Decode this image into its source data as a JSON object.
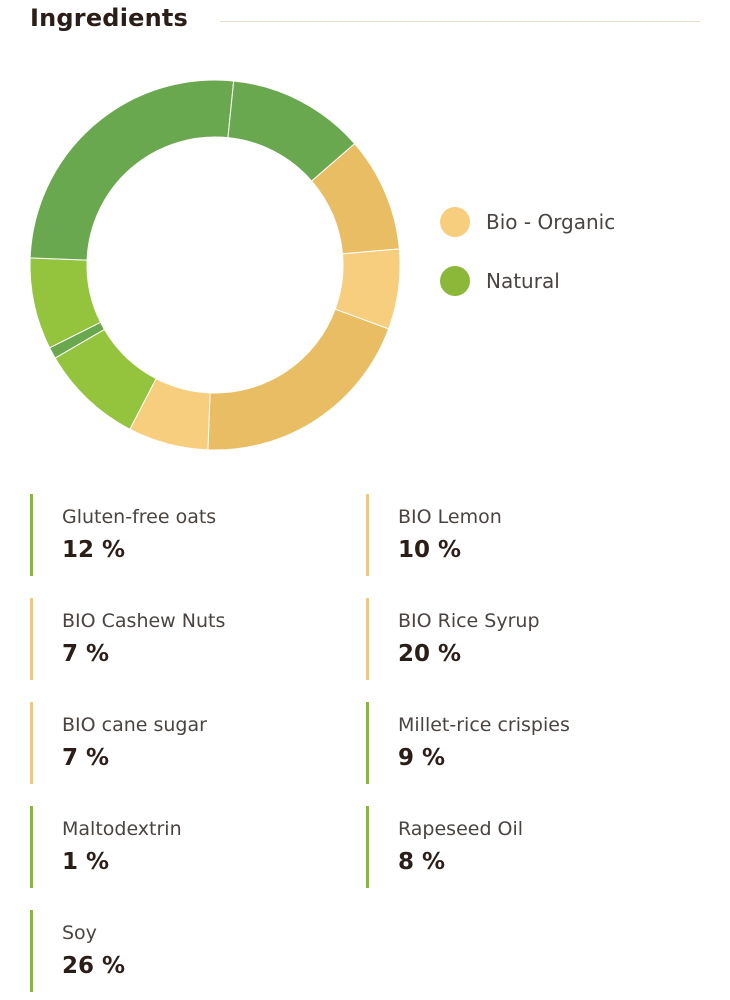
{
  "section": {
    "title": "Ingredients"
  },
  "legend": [
    {
      "label": "Bio - Organic",
      "color": "#f7cd7e"
    },
    {
      "label": "Natural",
      "color": "#8cb83a"
    }
  ],
  "chart_data": {
    "type": "pie",
    "variant": "donut",
    "start_angle_deg": 49,
    "legend_position": "right",
    "slices": [
      {
        "label": "BIO Lemon",
        "value": 10,
        "group": "Bio - Organic",
        "color": "#e9bd63"
      },
      {
        "label": "BIO Cashew Nuts",
        "value": 7,
        "group": "Bio - Organic",
        "color": "#f7cd7e"
      },
      {
        "label": "BIO Rice Syrup",
        "value": 20,
        "group": "Bio - Organic",
        "color": "#e9bd63"
      },
      {
        "label": "BIO cane sugar",
        "value": 7,
        "group": "Bio - Organic",
        "color": "#f7cd7e"
      },
      {
        "label": "Millet-rice crispies",
        "value": 9,
        "group": "Natural",
        "color": "#94c43d"
      },
      {
        "label": "Maltodextrin",
        "value": 1,
        "group": "Natural",
        "color": "#6aa84f"
      },
      {
        "label": "Rapeseed Oil",
        "value": 8,
        "group": "Natural",
        "color": "#94c43d"
      },
      {
        "label": "Soy",
        "value": 26,
        "group": "Natural",
        "color": "#6aa84f"
      },
      {
        "label": "Gluten-free oats",
        "value": 12,
        "group": "Natural",
        "color": "#6aa84f"
      }
    ]
  },
  "ingredients": [
    {
      "name": "Gluten-free oats",
      "value": "12 %",
      "group": "Natural"
    },
    {
      "name": "BIO Lemon",
      "value": "10 %",
      "group": "Bio - Organic"
    },
    {
      "name": "BIO Cashew Nuts",
      "value": "7 %",
      "group": "Bio - Organic"
    },
    {
      "name": "BIO Rice Syrup",
      "value": "20 %",
      "group": "Bio - Organic"
    },
    {
      "name": "BIO cane sugar",
      "value": "7 %",
      "group": "Bio - Organic"
    },
    {
      "name": "Millet-rice crispies",
      "value": "9 %",
      "group": "Natural"
    },
    {
      "name": "Maltodextrin",
      "value": "1 %",
      "group": "Natural"
    },
    {
      "name": "Rapeseed Oil",
      "value": "8 %",
      "group": "Natural"
    },
    {
      "name": "Soy",
      "value": "26 %",
      "group": "Natural"
    }
  ]
}
